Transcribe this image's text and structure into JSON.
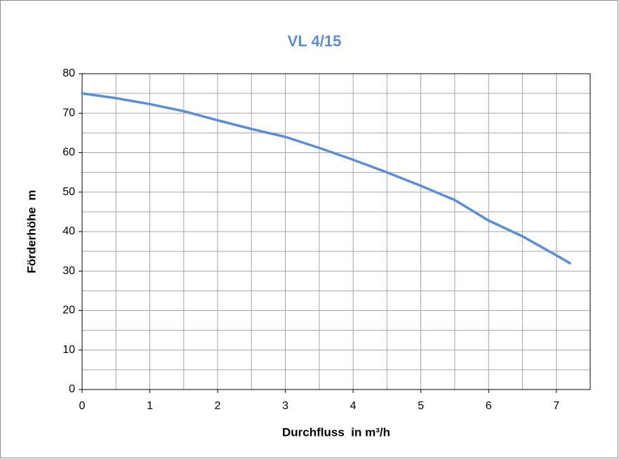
{
  "chart_data": {
    "type": "line",
    "title": "VL 4/15",
    "x_label": "Durchfluss  in m³/h",
    "y_label": "Förderhöhe  m",
    "x": [
      0,
      0.5,
      1,
      1.5,
      2,
      2.5,
      3,
      3.5,
      4,
      4.5,
      5,
      5.5,
      6,
      6.5,
      7,
      7.2
    ],
    "series": [
      {
        "name": "VL 4/15",
        "color": "#5b8ed6",
        "values": [
          75,
          73.8,
          72.3,
          70.5,
          68.2,
          66,
          64,
          61.2,
          58.2,
          55,
          51.6,
          48,
          42.8,
          38.8,
          34,
          32
        ]
      }
    ],
    "xlim": [
      0,
      7.5
    ],
    "ylim": [
      0,
      80
    ],
    "xticks": [
      0,
      1,
      2,
      3,
      4,
      5,
      6,
      7
    ],
    "yticks": [
      0,
      10,
      20,
      30,
      40,
      50,
      60,
      70,
      80
    ],
    "xgrid": [
      0.5,
      1,
      1.5,
      2,
      2.5,
      3,
      3.5,
      4,
      4.5,
      5,
      5.5,
      6,
      6.5,
      7
    ],
    "ygrid": [
      5,
      10,
      15,
      20,
      25,
      30,
      35,
      40,
      45,
      50,
      55,
      60,
      65,
      70,
      75
    ],
    "grid": true,
    "title_color": "#5b8ed6"
  }
}
